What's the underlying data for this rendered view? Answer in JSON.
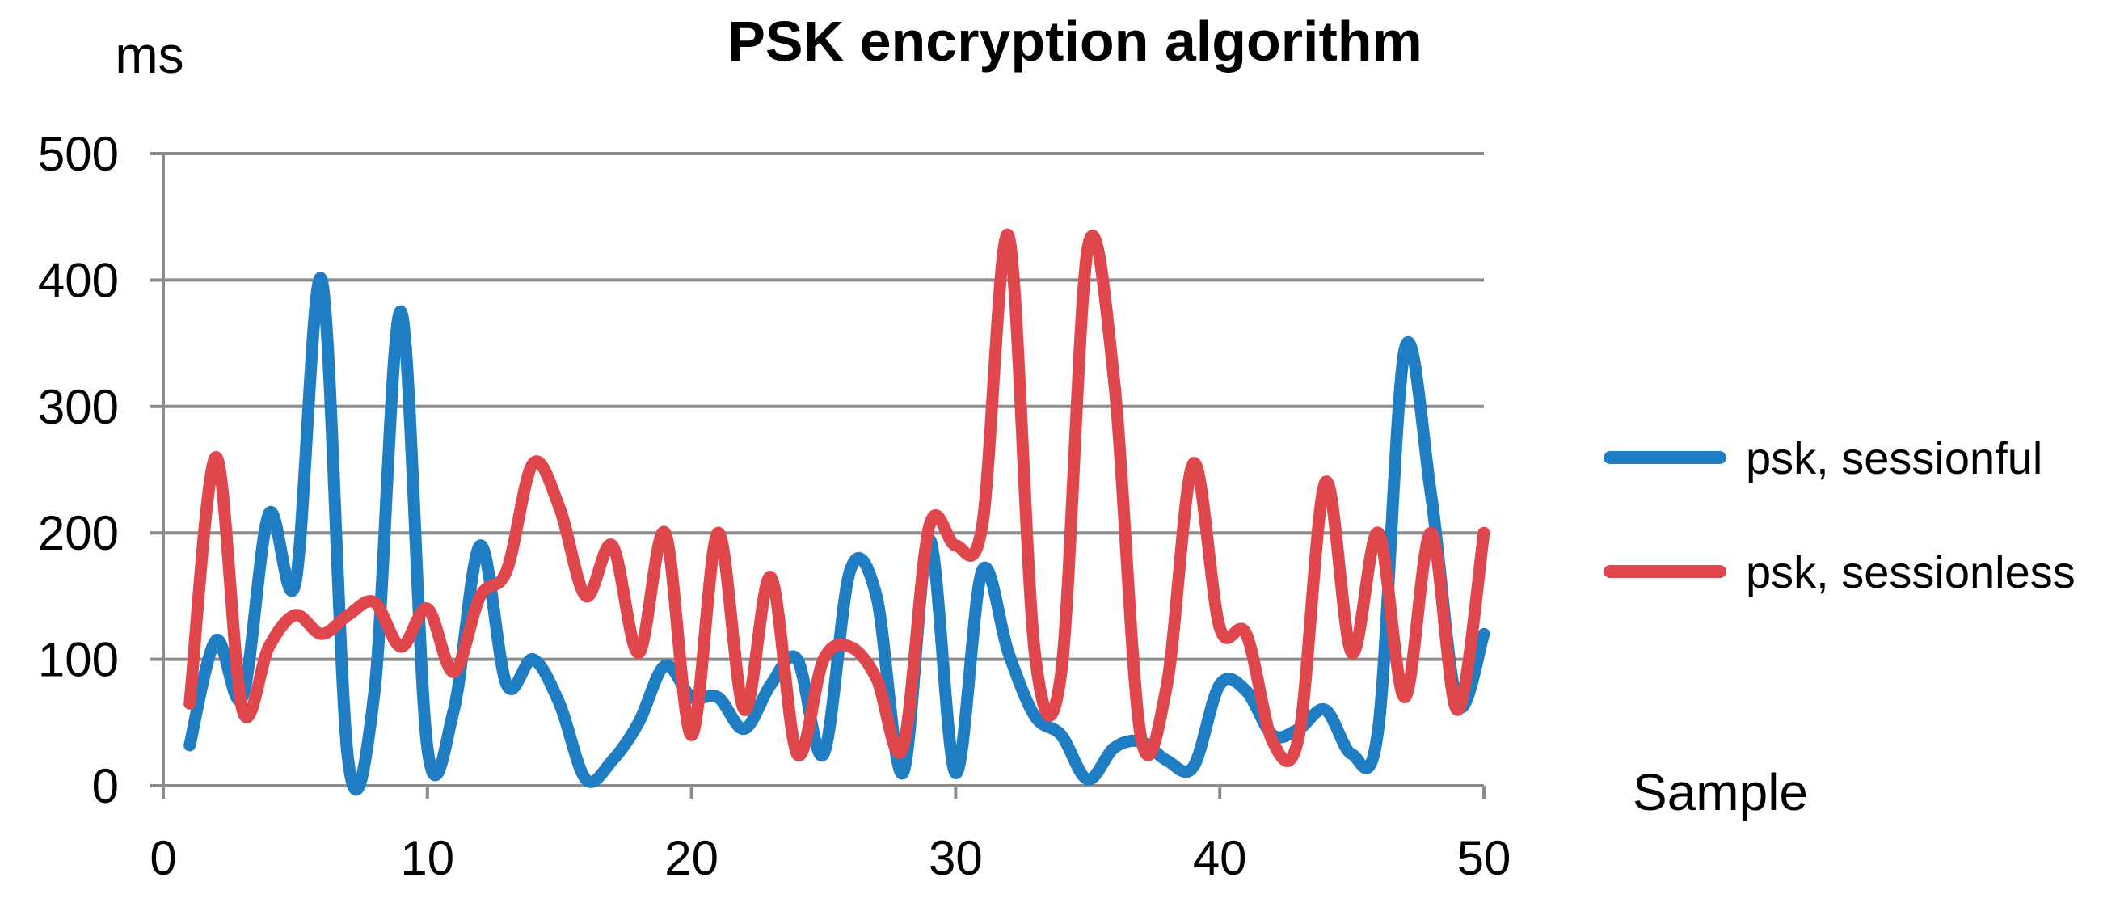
{
  "chart_data": {
    "type": "line",
    "title": "PSK encryption algorithm",
    "ylabel": "ms",
    "xlabel": "Sample",
    "xlim": [
      0,
      50
    ],
    "ylim": [
      0,
      500
    ],
    "xticks": [
      0,
      10,
      20,
      30,
      40,
      50
    ],
    "yticks": [
      0,
      100,
      200,
      300,
      400,
      500
    ],
    "grid": "horizontal",
    "legend_position": "right",
    "x": [
      1,
      2,
      3,
      4,
      5,
      6,
      7,
      8,
      9,
      10,
      11,
      12,
      13,
      14,
      15,
      16,
      17,
      18,
      19,
      20,
      21,
      22,
      23,
      24,
      25,
      26,
      27,
      28,
      29,
      30,
      31,
      32,
      33,
      34,
      35,
      36,
      37,
      38,
      39,
      40,
      41,
      42,
      43,
      44,
      45,
      46,
      47,
      48,
      49,
      50
    ],
    "series": [
      {
        "name": "psk, sessionful",
        "color": "#1f7dc4",
        "values": [
          32,
          115,
          70,
          215,
          160,
          400,
          20,
          75,
          375,
          30,
          60,
          190,
          80,
          100,
          65,
          5,
          20,
          50,
          95,
          70,
          70,
          45,
          80,
          100,
          25,
          170,
          150,
          10,
          195,
          10,
          170,
          105,
          55,
          40,
          5,
          30,
          35,
          20,
          15,
          80,
          75,
          40,
          45,
          60,
          25,
          45,
          345,
          230,
          65,
          120
        ]
      },
      {
        "name": "psk, sessionless",
        "color": "#e0474c",
        "values": [
          65,
          260,
          60,
          110,
          135,
          120,
          135,
          145,
          110,
          140,
          90,
          150,
          170,
          255,
          220,
          150,
          190,
          105,
          200,
          40,
          200,
          60,
          165,
          25,
          100,
          110,
          85,
          30,
          205,
          190,
          205,
          435,
          105,
          90,
          425,
          320,
          40,
          80,
          255,
          125,
          120,
          35,
          40,
          240,
          105,
          200,
          70,
          200,
          60,
          200
        ]
      }
    ]
  }
}
